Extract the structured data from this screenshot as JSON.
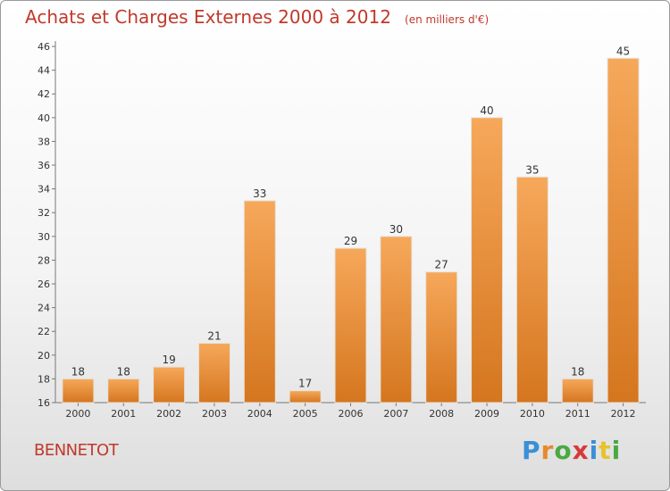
{
  "header": {
    "title": "Achats et Charges Externes 2000 à 2012",
    "subtitle": "(en milliers d'€)"
  },
  "commune": "BENNETOT",
  "logo": {
    "letters": [
      "P",
      "r",
      "o",
      "x",
      "i",
      "t",
      "i"
    ],
    "colors": [
      "#3a8fd6",
      "#e8892c",
      "#49a942",
      "#d63a3a",
      "#3a8fd6",
      "#e8c22c",
      "#49a942"
    ]
  },
  "colors": {
    "bar_top": "#f6a85a",
    "bar_bottom": "#d5761f",
    "title": "#c0392b"
  },
  "chart_data": {
    "type": "bar",
    "title": "Achats et Charges Externes 2000 à 2012",
    "xlabel": "",
    "ylabel": "",
    "categories": [
      "2000",
      "2001",
      "2002",
      "2003",
      "2004",
      "2005",
      "2006",
      "2007",
      "2008",
      "2009",
      "2010",
      "2011",
      "2012"
    ],
    "values": [
      18,
      18,
      19,
      21,
      33,
      17,
      29,
      30,
      27,
      40,
      35,
      18,
      45
    ],
    "ylim": [
      16,
      46
    ],
    "yticks": [
      16,
      18,
      20,
      22,
      24,
      26,
      28,
      30,
      32,
      34,
      36,
      38,
      40,
      42,
      44,
      46
    ],
    "grid": false,
    "legend": "none"
  }
}
